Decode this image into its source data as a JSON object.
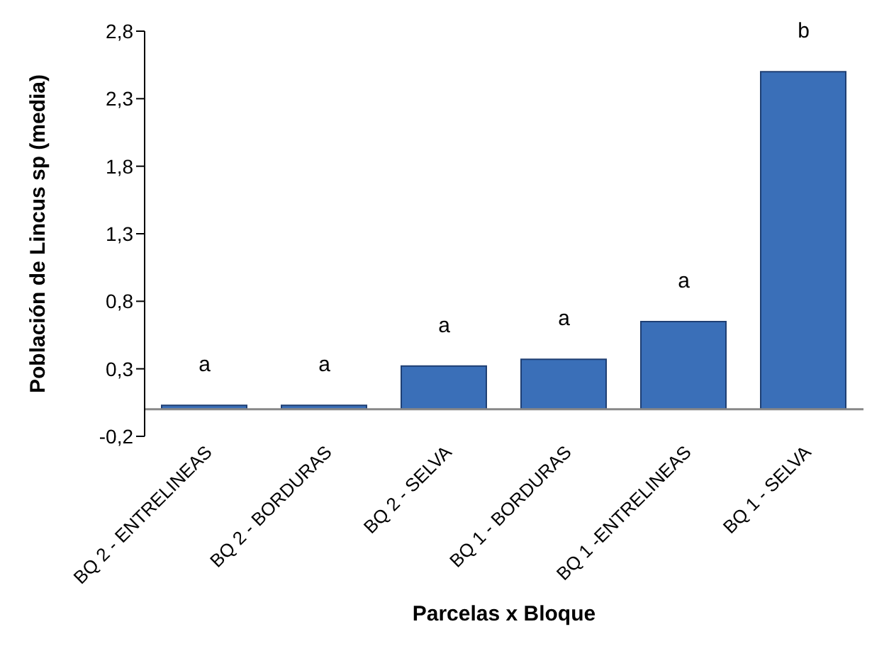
{
  "chart_data": {
    "type": "bar",
    "xlabel": "Parcelas x Bloque",
    "ylabel": "Población de Lincus sp (media)",
    "categories": [
      "BQ 2 - ENTRELINEAS",
      "BQ 2 - BORDURAS",
      "BQ 2 - SELVA",
      "BQ 1 - BORDURAS",
      "BQ 1 -ENTRELINEAS",
      "BQ 1 - SELVA"
    ],
    "values": [
      0.03,
      0.03,
      0.32,
      0.37,
      0.65,
      2.5
    ],
    "color": "#3a6fb8",
    "ylim": [
      -0.2,
      2.8
    ],
    "yticks": [
      {
        "value": -0.2,
        "label": "-0,2"
      },
      {
        "value": 0.3,
        "label": "0,3"
      },
      {
        "value": 0.8,
        "label": "0,8"
      },
      {
        "value": 1.3,
        "label": "1,3"
      },
      {
        "value": 1.8,
        "label": "1,8"
      },
      {
        "value": 2.3,
        "label": "2,3"
      },
      {
        "value": 2.8,
        "label": "2,8"
      }
    ],
    "grid": false,
    "annotations": [
      {
        "text": "a",
        "x": "BQ 2 - ENTRELINEAS",
        "y": 0.03
      },
      {
        "text": "a",
        "x": "BQ 2 - BORDURAS",
        "y": 0.03
      },
      {
        "text": "a",
        "x": "BQ 2 - SELVA",
        "y": 0.32
      },
      {
        "text": "a",
        "x": "BQ 1 - BORDURAS",
        "y": 0.37
      },
      {
        "text": "a",
        "x": "BQ 1 -ENTRELINEAS",
        "y": 0.65
      },
      {
        "text": "b",
        "x": "BQ 1 - SELVA",
        "y": 2.5
      }
    ]
  }
}
